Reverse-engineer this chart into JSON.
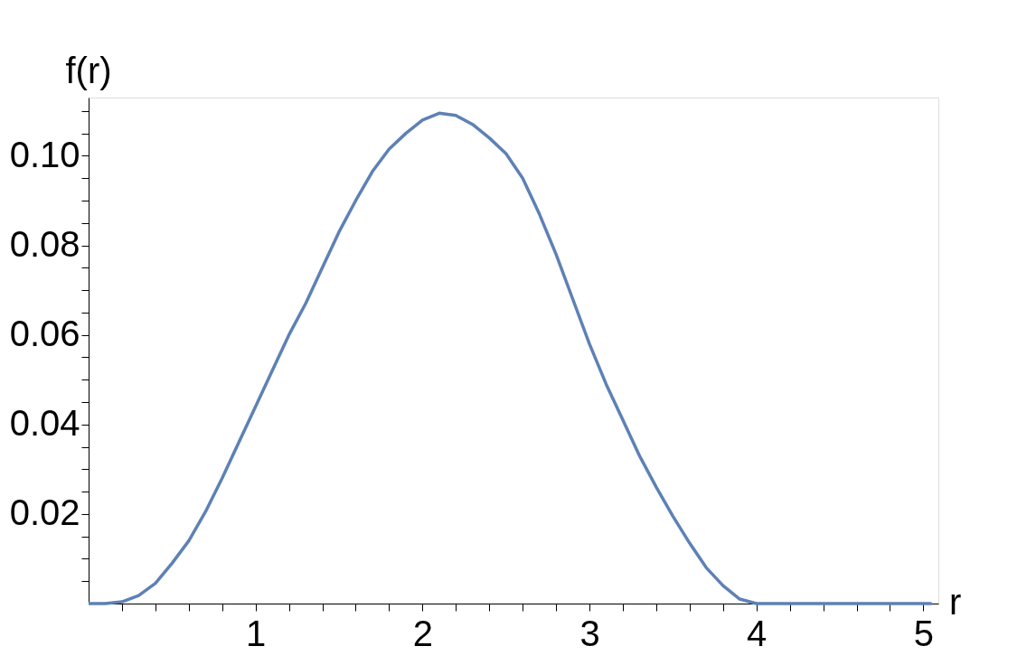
{
  "chart_data": {
    "type": "line",
    "xlabel": "r",
    "ylabel": "f(r)",
    "x": [
      0,
      0.1,
      0.2,
      0.3,
      0.4,
      0.5,
      0.6,
      0.7,
      0.8,
      0.9,
      1.0,
      1.1,
      1.2,
      1.3,
      1.4,
      1.5,
      1.6,
      1.7,
      1.8,
      1.9,
      2.0,
      2.1,
      2.2,
      2.3,
      2.4,
      2.5,
      2.6,
      2.7,
      2.8,
      2.9,
      3.0,
      3.1,
      3.2,
      3.3,
      3.4,
      3.5,
      3.6,
      3.7,
      3.8,
      3.9,
      4.0,
      4.5,
      5.05
    ],
    "series": [
      {
        "color": "#5e81b5",
        "values": [
          0,
          0,
          0.0004,
          0.0018,
          0.0045,
          0.009,
          0.014,
          0.0205,
          0.028,
          0.036,
          0.044,
          0.052,
          0.06,
          0.067,
          0.075,
          0.083,
          0.09,
          0.0965,
          0.1015,
          0.105,
          0.108,
          0.1095,
          0.109,
          0.107,
          0.104,
          0.1005,
          0.095,
          0.087,
          0.078,
          0.068,
          0.058,
          0.049,
          0.041,
          0.033,
          0.026,
          0.0195,
          0.0135,
          0.008,
          0.004,
          0.001,
          0,
          0,
          0
        ]
      }
    ],
    "xlim": [
      0,
      5.09
    ],
    "ylim": [
      0,
      0.113
    ],
    "xticks": [
      {
        "value": 0.2,
        "label": null
      },
      {
        "value": 0.4,
        "label": null
      },
      {
        "value": 0.6,
        "label": null
      },
      {
        "value": 0.8,
        "label": null
      },
      1,
      {
        "value": 1.2,
        "label": null
      },
      {
        "value": 1.4,
        "label": null
      },
      {
        "value": 1.6,
        "label": null
      },
      {
        "value": 1.8,
        "label": null
      },
      2,
      {
        "value": 2.2,
        "label": null
      },
      {
        "value": 2.4,
        "label": null
      },
      {
        "value": 2.6,
        "label": null
      },
      {
        "value": 2.8,
        "label": null
      },
      3,
      {
        "value": 3.2,
        "label": null
      },
      {
        "value": 3.4,
        "label": null
      },
      {
        "value": 3.6,
        "label": null
      },
      {
        "value": 3.8,
        "label": null
      },
      4,
      {
        "value": 4.2,
        "label": null
      },
      {
        "value": 4.4,
        "label": null
      },
      {
        "value": 4.6,
        "label": null
      },
      {
        "value": 4.8,
        "label": null
      },
      5
    ],
    "yticks": [
      {
        "value": 0.005,
        "label": null
      },
      {
        "value": 0.01,
        "label": null
      },
      {
        "value": 0.015,
        "label": null
      },
      0.02,
      {
        "value": 0.025,
        "label": null
      },
      {
        "value": 0.03,
        "label": null
      },
      {
        "value": 0.035,
        "label": null
      },
      0.04,
      {
        "value": 0.045,
        "label": null
      },
      {
        "value": 0.05,
        "label": null
      },
      {
        "value": 0.055,
        "label": null
      },
      0.06,
      {
        "value": 0.065,
        "label": null
      },
      {
        "value": 0.07,
        "label": null
      },
      {
        "value": 0.075,
        "label": null
      },
      0.08,
      {
        "value": 0.085,
        "label": null
      },
      {
        "value": 0.09,
        "label": null
      },
      {
        "value": 0.095,
        "label": null
      },
      {
        "value": 0.1,
        "label": "0.10"
      },
      {
        "value": 0.105,
        "label": null
      },
      {
        "value": 0.11,
        "label": null
      }
    ],
    "grid": false,
    "marker": "none",
    "line_style": "solid"
  }
}
